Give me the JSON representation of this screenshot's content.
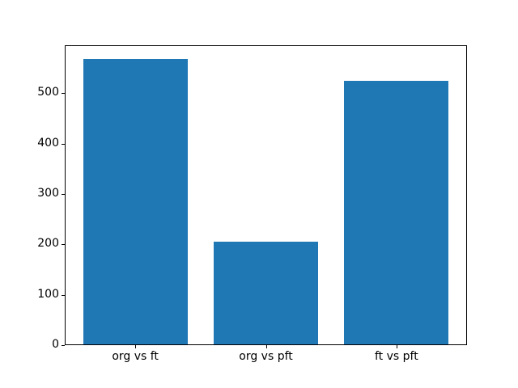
{
  "figure": {
    "background": "#ffffff",
    "text_color": "#000000",
    "spine_color": "#000000"
  },
  "chart_data": {
    "type": "bar",
    "title": "",
    "xlabel": "",
    "ylabel": "",
    "categories": [
      "org vs ft",
      "org vs pft",
      "ft vs pft"
    ],
    "values": [
      567,
      206,
      525
    ],
    "bar_color": "#1f77b4",
    "bar_width": 0.8,
    "xlim": [
      -0.54,
      2.54
    ],
    "ylim": [
      0,
      595
    ],
    "yticks": [
      0,
      100,
      200,
      300,
      400,
      500
    ],
    "grid": false,
    "legend": "none"
  }
}
